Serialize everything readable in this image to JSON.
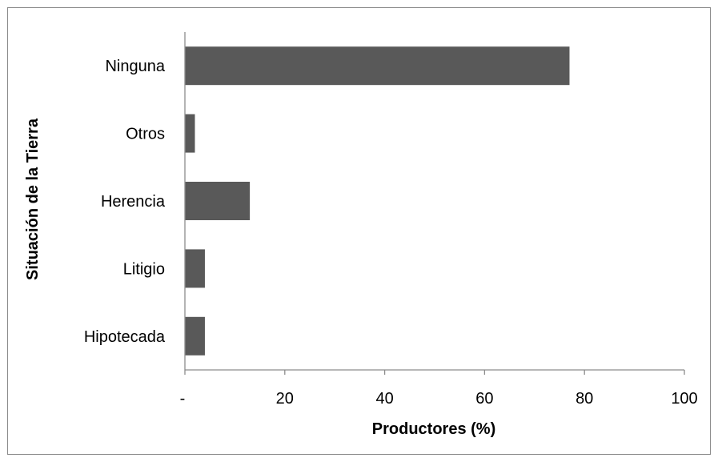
{
  "chart_data": {
    "type": "bar",
    "orientation": "horizontal",
    "title": "",
    "xlabel": "Productores (%)",
    "ylabel": "Situación de la Tierra",
    "categories": [
      "Ninguna",
      "Otros",
      "Herencia",
      "Litigio",
      "Hipotecada"
    ],
    "values": [
      77,
      2,
      13,
      4,
      4
    ],
    "xlim": [
      0,
      100
    ],
    "xticks": [
      {
        "value": 0,
        "label": "-"
      },
      {
        "value": 20,
        "label": "20"
      },
      {
        "value": 40,
        "label": "40"
      },
      {
        "value": 60,
        "label": "60"
      },
      {
        "value": 80,
        "label": "80"
      },
      {
        "value": 100,
        "label": "100"
      }
    ],
    "bar_color": "#595959",
    "grid": false,
    "legend": "none"
  }
}
